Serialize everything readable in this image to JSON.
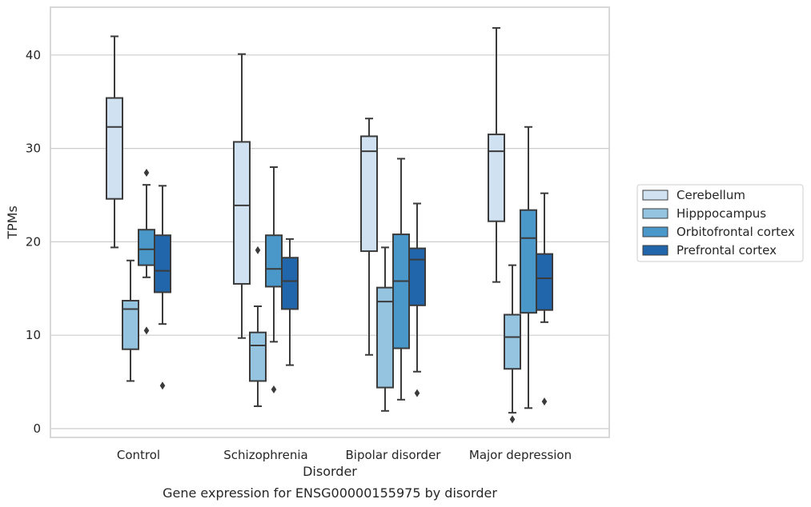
{
  "caption": "Gene expression for ENSG00000155975 by disorder",
  "chart_data": {
    "type": "box",
    "xlabel": "Disorder",
    "ylabel": "TPMs",
    "ylim": [
      -1,
      45.5
    ],
    "yticks": [
      0,
      10,
      20,
      30,
      40
    ],
    "grid": "horizontal",
    "legend_position": "right",
    "categories": [
      "Control",
      "Schizophrenia",
      "Bipolar disorder",
      "Major depression"
    ],
    "series": [
      {
        "name": "Cerebellum",
        "color": "#d0e1f2",
        "boxes": [
          {
            "whisker_low": 19.4,
            "q1": 24.6,
            "median": 32.3,
            "q3": 35.4,
            "whisker_high": 42.0,
            "outliers": []
          },
          {
            "whisker_low": 9.7,
            "q1": 15.5,
            "median": 23.9,
            "q3": 30.7,
            "whisker_high": 40.1,
            "outliers": []
          },
          {
            "whisker_low": 7.9,
            "q1": 19.0,
            "median": 29.7,
            "q3": 31.3,
            "whisker_high": 33.2,
            "outliers": []
          },
          {
            "whisker_low": 15.7,
            "q1": 22.2,
            "median": 29.7,
            "q3": 31.5,
            "whisker_high": 42.9,
            "outliers": []
          }
        ]
      },
      {
        "name": "Hipppocampus",
        "color": "#94c4df",
        "boxes": [
          {
            "whisker_low": 5.1,
            "q1": 8.5,
            "median": 12.8,
            "q3": 13.7,
            "whisker_high": 18.0,
            "outliers": []
          },
          {
            "whisker_low": 2.4,
            "q1": 5.1,
            "median": 8.9,
            "q3": 10.3,
            "whisker_high": 13.1,
            "outliers": [
              19.1
            ]
          },
          {
            "whisker_low": 1.9,
            "q1": 4.4,
            "median": 13.6,
            "q3": 15.1,
            "whisker_high": 19.4,
            "outliers": []
          },
          {
            "whisker_low": 1.7,
            "q1": 6.4,
            "median": 9.8,
            "q3": 12.2,
            "whisker_high": 17.5,
            "outliers": [
              1.0
            ]
          }
        ]
      },
      {
        "name": "Orbitofrontal cortex",
        "color": "#4a98c9",
        "boxes": [
          {
            "whisker_low": 16.2,
            "q1": 17.5,
            "median": 19.2,
            "q3": 21.3,
            "whisker_high": 26.1,
            "outliers": [
              27.4,
              10.5
            ]
          },
          {
            "whisker_low": 9.3,
            "q1": 15.2,
            "median": 17.1,
            "q3": 20.7,
            "whisker_high": 28.0,
            "outliers": [
              4.2
            ]
          },
          {
            "whisker_low": 3.1,
            "q1": 8.6,
            "median": 15.8,
            "q3": 20.8,
            "whisker_high": 28.9,
            "outliers": []
          },
          {
            "whisker_low": 2.2,
            "q1": 12.4,
            "median": 20.4,
            "q3": 23.4,
            "whisker_high": 32.3,
            "outliers": []
          }
        ]
      },
      {
        "name": "Prefrontal cortex",
        "color": "#2165ab",
        "boxes": [
          {
            "whisker_low": 11.2,
            "q1": 14.6,
            "median": 16.9,
            "q3": 20.7,
            "whisker_high": 26.0,
            "outliers": [
              4.6
            ]
          },
          {
            "whisker_low": 6.8,
            "q1": 12.8,
            "median": 15.8,
            "q3": 18.3,
            "whisker_high": 20.3,
            "outliers": []
          },
          {
            "whisker_low": 6.1,
            "q1": 13.2,
            "median": 18.1,
            "q3": 19.3,
            "whisker_high": 24.1,
            "outliers": [
              3.8
            ]
          },
          {
            "whisker_low": 11.4,
            "q1": 12.7,
            "median": 16.1,
            "q3": 18.7,
            "whisker_high": 25.2,
            "outliers": [
              2.9
            ]
          }
        ]
      }
    ]
  }
}
